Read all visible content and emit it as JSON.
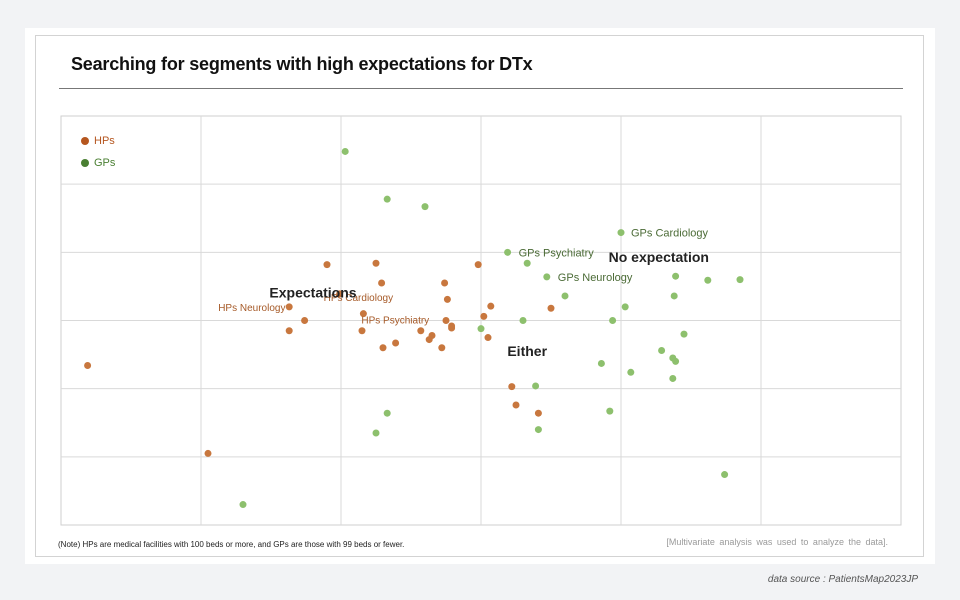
{
  "title": "Searching for segments with high expectations for DTx",
  "note": "(Note) HPs are medical facilities with 100 beds or more, and GPs are those with 99 beds or fewer.",
  "method": "[Multivariate analysis was used to analyze the data].",
  "source": "data source : PatientsMap2023JP",
  "colors": {
    "hp_fill": "#c8773e",
    "gp_fill": "#8dc06d",
    "hp_legend": "#b5561f",
    "gp_legend": "#4a7f32",
    "hp_label": "#a65a28",
    "gp_label": "#4b6b36",
    "grid": "#d9d9d9",
    "plot_border": "#cfcfcf"
  },
  "chart_data": {
    "type": "scatter",
    "title": "Searching for segments with high expectations for DTx",
    "xlabel": "",
    "ylabel": "",
    "xlim": [
      -2,
      4
    ],
    "ylim": [
      -3,
      3
    ],
    "grid": true,
    "legend_position": "top-left",
    "legend": [
      "HPs",
      "GPs"
    ],
    "series": [
      {
        "name": "HPs",
        "points": [
          [
            -1.81,
            -0.66
          ],
          [
            -0.95,
            -1.95
          ],
          [
            -0.37,
            0.2
          ],
          [
            -0.37,
            -0.15
          ],
          [
            -0.26,
            0.0
          ],
          [
            -0.1,
            0.82
          ],
          [
            -0.01,
            0.39
          ],
          [
            0.15,
            -0.15
          ],
          [
            0.16,
            0.1
          ],
          [
            0.25,
            0.84
          ],
          [
            0.29,
            0.55
          ],
          [
            0.3,
            -0.4
          ],
          [
            0.39,
            -0.33
          ],
          [
            0.57,
            -0.15
          ],
          [
            0.63,
            -0.28
          ],
          [
            0.65,
            -0.22
          ],
          [
            0.72,
            -0.4
          ],
          [
            0.74,
            0.55
          ],
          [
            0.75,
            0.0
          ],
          [
            0.76,
            0.31
          ],
          [
            0.79,
            -0.08
          ],
          [
            0.79,
            -0.11
          ],
          [
            0.98,
            0.82
          ],
          [
            1.02,
            0.06
          ],
          [
            1.05,
            -0.25
          ],
          [
            1.07,
            0.21
          ],
          [
            1.22,
            -0.97
          ],
          [
            1.25,
            -1.24
          ],
          [
            1.41,
            -1.36
          ],
          [
            1.5,
            0.18
          ]
        ]
      },
      {
        "name": "GPs",
        "points": [
          [
            -0.7,
            -2.7
          ],
          [
            0.03,
            2.48
          ],
          [
            0.25,
            -1.65
          ],
          [
            0.33,
            1.78
          ],
          [
            0.33,
            -1.36
          ],
          [
            0.6,
            1.67
          ],
          [
            1.0,
            -0.12
          ],
          [
            1.19,
            1.0
          ],
          [
            1.3,
            0.0
          ],
          [
            1.33,
            0.84
          ],
          [
            1.39,
            -0.96
          ],
          [
            1.41,
            -1.6
          ],
          [
            1.47,
            0.64
          ],
          [
            1.6,
            0.36
          ],
          [
            1.86,
            -0.63
          ],
          [
            1.92,
            -1.33
          ],
          [
            1.94,
            0.0
          ],
          [
            2.0,
            1.29
          ],
          [
            2.03,
            0.2
          ],
          [
            2.07,
            -0.76
          ],
          [
            2.29,
            -0.44
          ],
          [
            2.37,
            -0.55
          ],
          [
            2.37,
            -0.85
          ],
          [
            2.38,
            0.36
          ],
          [
            2.39,
            -0.6
          ],
          [
            2.39,
            0.65
          ],
          [
            2.45,
            -0.2
          ],
          [
            2.62,
            0.59
          ],
          [
            2.74,
            -2.26
          ],
          [
            2.85,
            0.6
          ]
        ]
      }
    ],
    "point_labels": [
      {
        "text": "HPs Neurology",
        "series": "HPs",
        "x": -0.37,
        "y": 0.2
      },
      {
        "text": "HPs Cardiology",
        "series": "HPs",
        "x": -0.01,
        "y": 0.39
      },
      {
        "text": "HPs Psychiatry",
        "series": "HPs",
        "x": 0.16,
        "y": 0.1
      },
      {
        "text": "GPs Psychiatry",
        "series": "GPs",
        "x": 1.19,
        "y": 1.0
      },
      {
        "text": "GPs Neurology",
        "series": "GPs",
        "x": 1.47,
        "y": 0.64
      },
      {
        "text": "GPs Cardiology",
        "series": "GPs",
        "x": 2.0,
        "y": 1.29
      }
    ],
    "annotations": [
      {
        "text": "Expectations",
        "x": -0.2,
        "y": 0.34
      },
      {
        "text": "No expectation",
        "x": 2.27,
        "y": 0.86
      },
      {
        "text": "Either",
        "x": 1.33,
        "y": -0.52
      }
    ]
  }
}
